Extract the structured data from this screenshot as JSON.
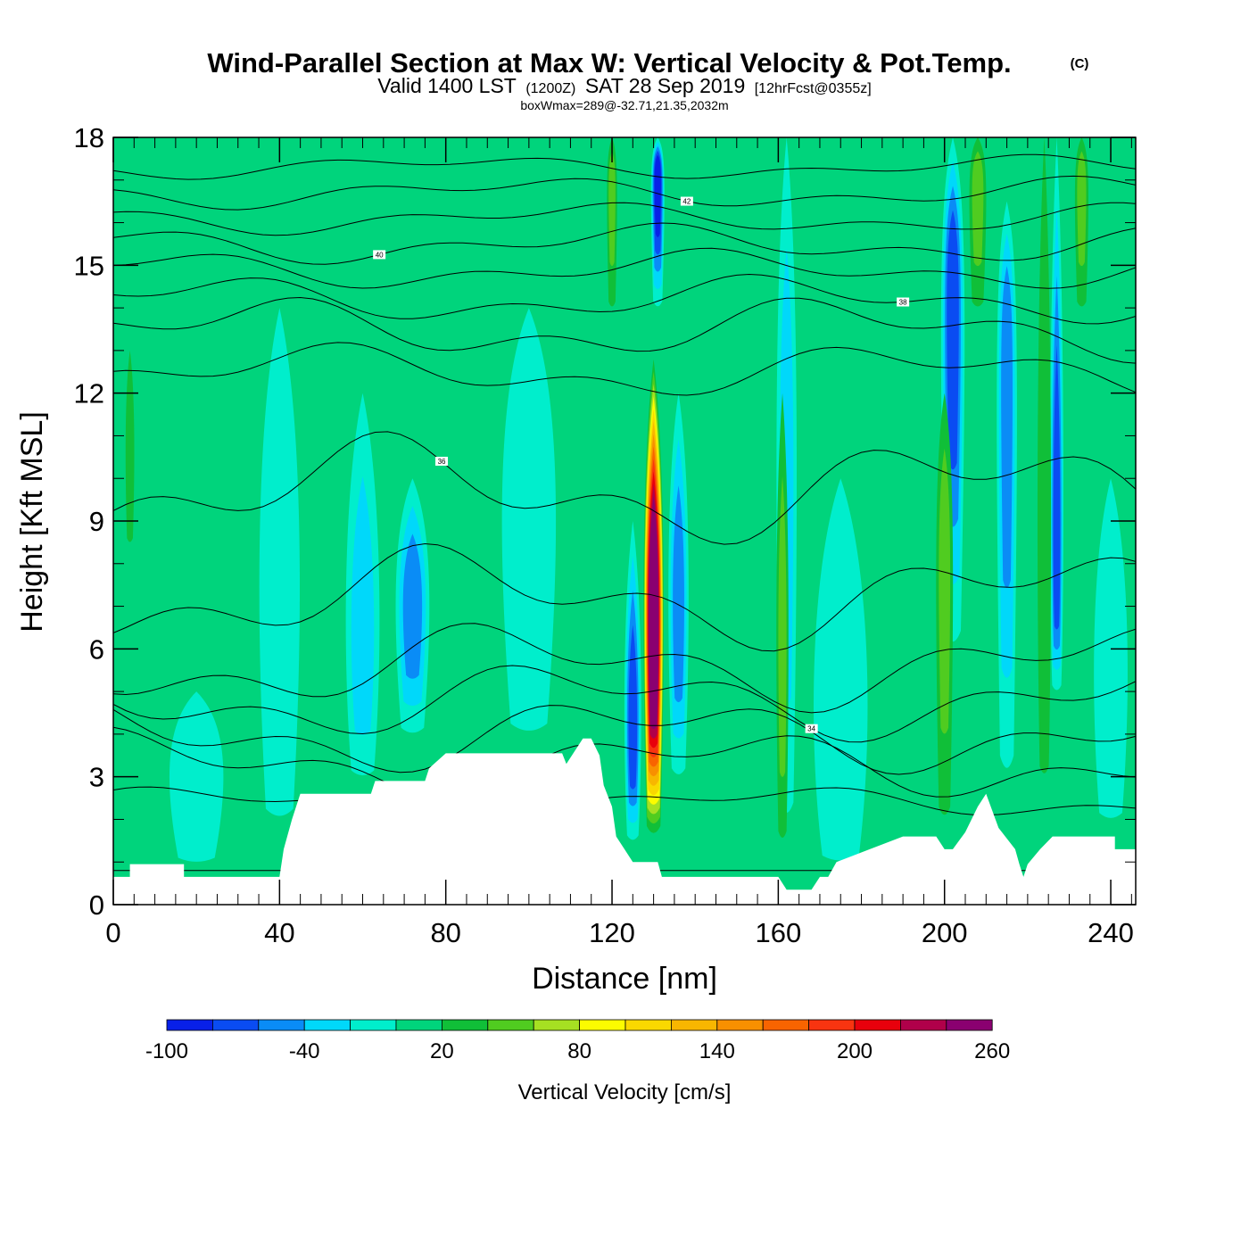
{
  "chart_data": {
    "type": "heatmap",
    "title": "Wind-Parallel Section at Max W: Vertical Velocity & Pot.Temp.",
    "title_mark": "(C)",
    "subtitle_parts": [
      "Valid 1400 LST",
      "(1200Z)",
      "SAT 28 Sep 2019",
      "[12hrFcst@0355z]"
    ],
    "subsubtitle": "boxWmax=289@-32.71,21.35,2032m",
    "xlabel": "Distance [nm]",
    "ylabel": "Height [Kft MSL]",
    "xlim": [
      0,
      246
    ],
    "ylim": [
      0,
      18
    ],
    "xticks": [
      0,
      40,
      80,
      120,
      160,
      200,
      240
    ],
    "yticks": [
      0,
      3,
      6,
      9,
      12,
      15,
      18
    ],
    "colorbar": {
      "label": "Vertical Velocity [cm/s]",
      "tick_labels": [
        "-100",
        "-40",
        "20",
        "80",
        "140",
        "200",
        "260"
      ],
      "tick_values": [
        -100,
        -40,
        20,
        80,
        140,
        200,
        260
      ],
      "levels": [
        -100,
        -80,
        -60,
        -40,
        -20,
        0,
        20,
        40,
        60,
        80,
        100,
        120,
        140,
        160,
        180,
        200,
        220,
        240,
        260,
        280,
        300
      ],
      "colors": [
        "#0820e8",
        "#0a4cf2",
        "#0a8cf6",
        "#00d8fa",
        "#00eecc",
        "#00d47c",
        "#10bf38",
        "#50cc20",
        "#a6e022",
        "#fcfc00",
        "#fad800",
        "#f8b600",
        "#f89000",
        "#f86400",
        "#f83410",
        "#e8000c",
        "#b0004a",
        "#8a0070"
      ]
    },
    "w_features": [
      {
        "x": 130,
        "z_low": 1.6,
        "z_high": 12.8,
        "z_peak": 6.5,
        "w_max": 289,
        "width_nm": 3.0
      },
      {
        "x": 125,
        "z_low": 1.5,
        "z_high": 9.0,
        "z_peak": 4.0,
        "w_max": -60,
        "width_nm": 2.5
      },
      {
        "x": 136,
        "z_low": 3.0,
        "z_high": 12.0,
        "z_peak": 7.0,
        "w_max": -45,
        "width_nm": 3.0
      },
      {
        "x": 131,
        "z_low": 14.0,
        "z_high": 18.0,
        "z_peak": 17.2,
        "w_max": -90,
        "width_nm": 2.0
      },
      {
        "x": 202,
        "z_low": 6.0,
        "z_high": 18.0,
        "z_peak": 14.5,
        "w_max": -75,
        "width_nm": 3.5
      },
      {
        "x": 215,
        "z_low": 3.0,
        "z_high": 16.5,
        "z_peak": 13.0,
        "w_max": -45,
        "width_nm": 3.0
      },
      {
        "x": 227,
        "z_low": 5.0,
        "z_high": 18.0,
        "z_peak": 8.0,
        "w_max": -60,
        "width_nm": 2.0
      },
      {
        "x": 162,
        "z_low": 2.0,
        "z_high": 18.0,
        "z_peak": 10.0,
        "w_max": -35,
        "width_nm": 3.0
      },
      {
        "x": 72,
        "z_low": 4.0,
        "z_high": 10.0,
        "z_peak": 7.0,
        "w_max": -40,
        "width_nm": 5.0
      },
      {
        "x": 60,
        "z_low": 3.0,
        "z_high": 12.0,
        "z_peak": 6.0,
        "w_max": -25,
        "width_nm": 5.0
      },
      {
        "x": 161,
        "z_low": 1.5,
        "z_high": 12.0,
        "z_peak": 6.0,
        "w_max": 40,
        "width_nm": 1.8
      },
      {
        "x": 200,
        "z_low": 2.0,
        "z_high": 12.0,
        "z_peak": 8.0,
        "w_max": 40,
        "width_nm": 2.5
      },
      {
        "x": 224,
        "z_low": 3.0,
        "z_high": 18.0,
        "z_peak": 8.0,
        "w_max": 35,
        "width_nm": 2.0
      },
      {
        "x": 208,
        "z_low": 14.0,
        "z_high": 18.0,
        "z_peak": 17.0,
        "w_max": 40,
        "width_nm": 2.5
      },
      {
        "x": 233,
        "z_low": 14.0,
        "z_high": 18.0,
        "z_peak": 17.0,
        "w_max": 40,
        "width_nm": 2.0
      },
      {
        "x": 4,
        "z_low": 8.5,
        "z_high": 13.0,
        "z_peak": 10.5,
        "w_max": 35,
        "width_nm": 1.2
      },
      {
        "x": 120,
        "z_low": 14.0,
        "z_high": 18.0,
        "z_peak": 17.0,
        "w_max": 40,
        "width_nm": 1.5
      },
      {
        "x": 20,
        "z_low": 1.0,
        "z_high": 5.0,
        "z_peak": 3.0,
        "w_max": -10,
        "width_nm": 8.0
      },
      {
        "x": 40,
        "z_low": 2.0,
        "z_high": 14.0,
        "z_peak": 7.0,
        "w_max": -10,
        "width_nm": 6.0
      },
      {
        "x": 100,
        "z_low": 4.0,
        "z_high": 14.0,
        "z_peak": 9.0,
        "w_max": -15,
        "width_nm": 8.0
      },
      {
        "x": 175,
        "z_low": 1.0,
        "z_high": 10.0,
        "z_peak": 4.0,
        "w_max": -15,
        "width_nm": 8.0
      },
      {
        "x": 240,
        "z_low": 2.0,
        "z_high": 10.0,
        "z_peak": 5.0,
        "w_max": -15,
        "width_nm": 5.0
      }
    ],
    "terrain": {
      "x": [
        0,
        4,
        4,
        17,
        17,
        40,
        41,
        43,
        45,
        62,
        63,
        75,
        76,
        80,
        108,
        109,
        113,
        115,
        117,
        118,
        120,
        121,
        123,
        125,
        131,
        132,
        140,
        160,
        162,
        168,
        170,
        172,
        174,
        182,
        190,
        198,
        200,
        202,
        205,
        208,
        210,
        213,
        217,
        218,
        219,
        220,
        223,
        226,
        232,
        241,
        241,
        246
      ],
      "z": [
        0.65,
        0.65,
        0.95,
        0.95,
        0.65,
        0.65,
        1.3,
        2.0,
        2.6,
        2.6,
        2.9,
        2.9,
        3.2,
        3.55,
        3.55,
        3.3,
        3.9,
        3.9,
        3.5,
        2.8,
        2.3,
        1.6,
        1.3,
        1.0,
        1.0,
        0.65,
        0.65,
        0.65,
        0.35,
        0.35,
        0.65,
        0.65,
        1.0,
        1.3,
        1.6,
        1.6,
        1.3,
        1.3,
        1.7,
        2.3,
        2.6,
        1.8,
        1.3,
        0.95,
        0.65,
        0.95,
        1.3,
        1.6,
        1.6,
        1.6,
        1.3,
        1.3
      ]
    },
    "theta_contours": [
      {
        "base": 0.8,
        "amp": 0.0,
        "label": ""
      },
      {
        "base": 2.4,
        "amp": 0.4,
        "label": ""
      },
      {
        "base": 3.3,
        "amp": 0.9,
        "label": ""
      },
      {
        "base": 4.0,
        "amp": 1.0,
        "label": ""
      },
      {
        "base": 4.8,
        "amp": 1.0,
        "label": "34"
      },
      {
        "base": 5.6,
        "amp": 1.1,
        "label": ""
      },
      {
        "base": 7.2,
        "amp": 1.3,
        "label": ""
      },
      {
        "base": 9.7,
        "amp": 1.4,
        "label": "36"
      },
      {
        "base": 12.5,
        "amp": 0.7,
        "label": ""
      },
      {
        "base": 13.5,
        "amp": 0.8,
        "label": ""
      },
      {
        "base": 14.2,
        "amp": 0.6,
        "label": "38"
      },
      {
        "base": 14.9,
        "amp": 0.5,
        "label": ""
      },
      {
        "base": 15.5,
        "amp": 0.5,
        "label": "40"
      },
      {
        "base": 16.1,
        "amp": 0.4,
        "label": ""
      },
      {
        "base": 16.7,
        "amp": 0.4,
        "label": "42"
      },
      {
        "base": 17.3,
        "amp": 0.3,
        "label": ""
      }
    ]
  }
}
